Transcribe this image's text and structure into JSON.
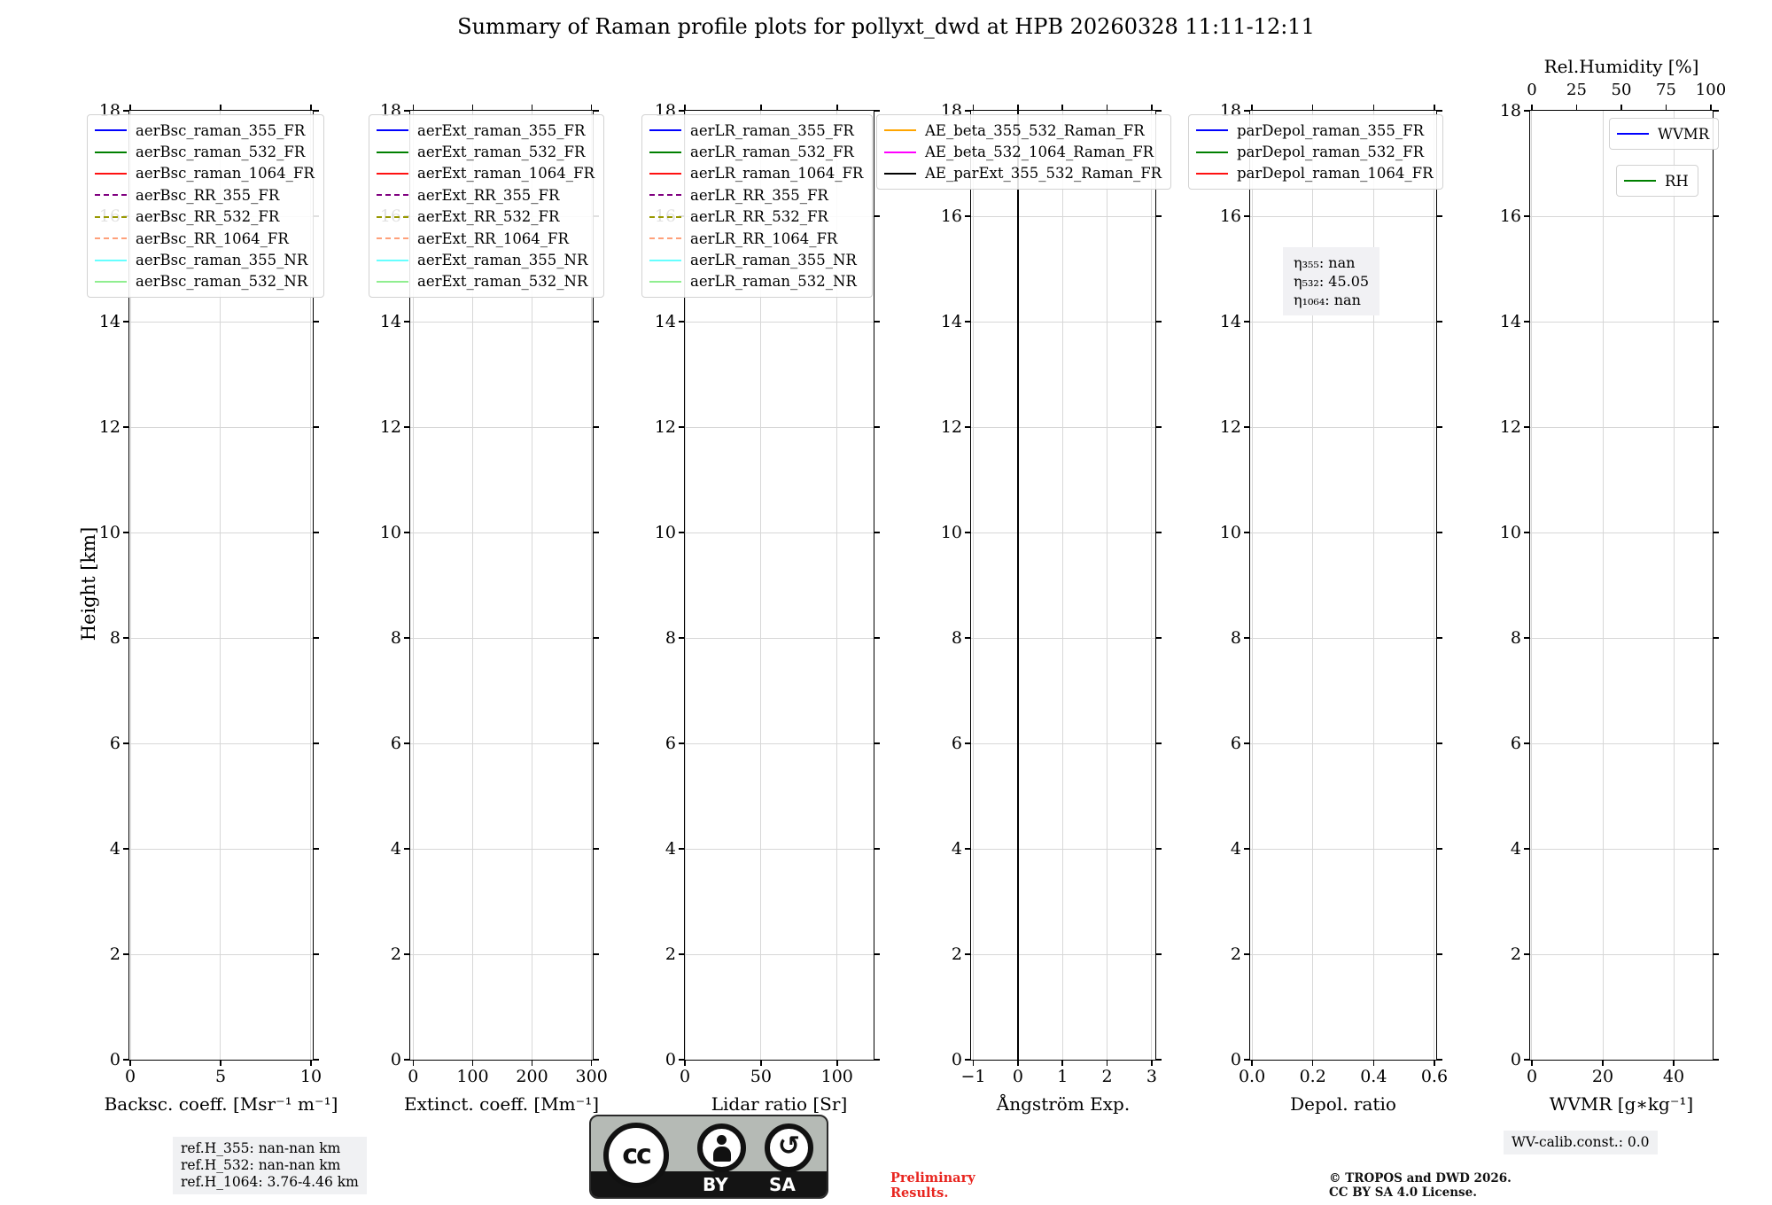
{
  "figure": {
    "title": "Summary of Raman profile plots for pollyxt_dwd at HPB 20260328 11:11-12:11",
    "ylabel": "Height [km]"
  },
  "chart_data": [
    {
      "id": "backscatter",
      "type": "line",
      "xlabel": "Backsc. coeff. [Msr⁻¹ m⁻¹]",
      "xlim": [
        -0.05,
        10.1
      ],
      "ylim": [
        0,
        18
      ],
      "xticks": [
        {
          "v": 0,
          "label": "0"
        },
        {
          "v": 5,
          "label": "5"
        },
        {
          "v": 10,
          "label": "10"
        }
      ],
      "yticks": [
        0,
        2,
        4,
        6,
        8,
        10,
        12,
        14,
        16,
        18
      ],
      "grid": true,
      "legend_loc": "upper left",
      "note": "axes empty - no profile curves visible",
      "series": [
        {
          "name": "aerBsc_raman_355_FR",
          "color": "#0000ff",
          "dash": false,
          "points": []
        },
        {
          "name": "aerBsc_raman_532_FR",
          "color": "#008000",
          "dash": false,
          "points": []
        },
        {
          "name": "aerBsc_raman_1064_FR",
          "color": "#ff1111",
          "dash": false,
          "points": []
        },
        {
          "name": "aerBsc_RR_355_FR",
          "color": "#800080",
          "dash": true,
          "points": []
        },
        {
          "name": "aerBsc_RR_532_FR",
          "color": "#999900",
          "dash": true,
          "points": []
        },
        {
          "name": "aerBsc_RR_1064_FR",
          "color": "#ffa07a",
          "dash": true,
          "points": []
        },
        {
          "name": "aerBsc_raman_355_NR",
          "color": "#66ffff",
          "dash": false,
          "points": []
        },
        {
          "name": "aerBsc_raman_532_NR",
          "color": "#90ee90",
          "dash": false,
          "points": []
        }
      ]
    },
    {
      "id": "extinction",
      "type": "line",
      "xlabel": "Extinct. coeff. [Mm⁻¹]",
      "xlim": [
        -5,
        302
      ],
      "ylim": [
        0,
        18
      ],
      "xticks": [
        {
          "v": 0,
          "label": "0"
        },
        {
          "v": 100,
          "label": "100"
        },
        {
          "v": 200,
          "label": "200"
        },
        {
          "v": 300,
          "label": "300"
        }
      ],
      "yticks": [
        0,
        2,
        4,
        6,
        8,
        10,
        12,
        14,
        16,
        18
      ],
      "grid": true,
      "legend_loc": "upper left",
      "note": "axes empty - no profile curves visible",
      "series": [
        {
          "name": "aerExt_raman_355_FR",
          "color": "#0000ff",
          "dash": false,
          "points": []
        },
        {
          "name": "aerExt_raman_532_FR",
          "color": "#008000",
          "dash": false,
          "points": []
        },
        {
          "name": "aerExt_raman_1064_FR",
          "color": "#ff1111",
          "dash": false,
          "points": []
        },
        {
          "name": "aerExt_RR_355_FR",
          "color": "#800080",
          "dash": true,
          "points": []
        },
        {
          "name": "aerExt_RR_532_FR",
          "color": "#999900",
          "dash": true,
          "points": []
        },
        {
          "name": "aerExt_RR_1064_FR",
          "color": "#ffa07a",
          "dash": true,
          "points": []
        },
        {
          "name": "aerExt_raman_355_NR",
          "color": "#66ffff",
          "dash": false,
          "points": []
        },
        {
          "name": "aerExt_raman_532_NR",
          "color": "#90ee90",
          "dash": false,
          "points": []
        }
      ]
    },
    {
      "id": "lidar-ratio",
      "type": "line",
      "xlabel": "Lidar ratio [Sr]",
      "xlim": [
        0,
        124
      ],
      "ylim": [
        0,
        18
      ],
      "xticks": [
        {
          "v": 0,
          "label": "0"
        },
        {
          "v": 50,
          "label": "50"
        },
        {
          "v": 100,
          "label": "100"
        }
      ],
      "yticks": [
        0,
        2,
        4,
        6,
        8,
        10,
        12,
        14,
        16,
        18
      ],
      "grid": true,
      "legend_loc": "upper left",
      "note": "axes empty - no profile curves visible",
      "series": [
        {
          "name": "aerLR_raman_355_FR",
          "color": "#0000ff",
          "dash": false,
          "points": []
        },
        {
          "name": "aerLR_raman_532_FR",
          "color": "#008000",
          "dash": false,
          "points": []
        },
        {
          "name": "aerLR_raman_1064_FR",
          "color": "#ff1111",
          "dash": false,
          "points": []
        },
        {
          "name": "aerLR_RR_355_FR",
          "color": "#800080",
          "dash": true,
          "points": []
        },
        {
          "name": "aerLR_RR_532_FR",
          "color": "#999900",
          "dash": true,
          "points": []
        },
        {
          "name": "aerLR_RR_1064_FR",
          "color": "#ffa07a",
          "dash": true,
          "points": []
        },
        {
          "name": "aerLR_raman_355_NR",
          "color": "#66ffff",
          "dash": false,
          "points": []
        },
        {
          "name": "aerLR_raman_532_NR",
          "color": "#90ee90",
          "dash": false,
          "points": []
        }
      ]
    },
    {
      "id": "angstroem",
      "type": "line",
      "xlabel": "Ångström Exp.",
      "xlim": [
        -1.05,
        3.08
      ],
      "ylim": [
        0,
        18
      ],
      "xticks": [
        {
          "v": -1,
          "label": "−1"
        },
        {
          "v": 0,
          "label": "0"
        },
        {
          "v": 1,
          "label": "1"
        },
        {
          "v": 2,
          "label": "2"
        },
        {
          "v": 3,
          "label": "3"
        }
      ],
      "yticks": [
        0,
        2,
        4,
        6,
        8,
        10,
        12,
        14,
        16,
        18
      ],
      "grid": true,
      "legend_loc": "upper left",
      "note": "black AE_parExt profile is a constant vertical line at 0 over 0-18 km",
      "series": [
        {
          "name": "AE_beta_355_532_Raman_FR",
          "color": "#ffa500",
          "dash": false,
          "points": []
        },
        {
          "name": "AE_beta_532_1064_Raman_FR",
          "color": "#ff00ff",
          "dash": false,
          "points": []
        },
        {
          "name": "AE_parExt_355_532_Raman_FR",
          "color": "#000000",
          "dash": false,
          "points": [
            [
              0,
              0
            ],
            [
              0,
              18
            ]
          ]
        }
      ]
    },
    {
      "id": "depol",
      "type": "line",
      "xlabel": "Depol. ratio",
      "xlim": [
        -0.006,
        0.606
      ],
      "ylim": [
        0,
        18
      ],
      "xticks": [
        {
          "v": 0,
          "label": "0.0"
        },
        {
          "v": 0.2,
          "label": "0.2"
        },
        {
          "v": 0.4,
          "label": "0.4"
        },
        {
          "v": 0.6,
          "label": "0.6"
        }
      ],
      "yticks": [
        0,
        2,
        4,
        6,
        8,
        10,
        12,
        14,
        16,
        18
      ],
      "grid": true,
      "legend_loc": "upper left",
      "annotation": [
        "η₃₅₅: nan",
        "η₅₃₂: 45.05",
        "η₁₀₆₄: nan"
      ],
      "note": "axes empty - no profile curves visible",
      "series": [
        {
          "name": "parDepol_raman_355_FR",
          "color": "#0000ff",
          "dash": false,
          "points": []
        },
        {
          "name": "parDepol_raman_532_FR",
          "color": "#008000",
          "dash": false,
          "points": []
        },
        {
          "name": "parDepol_raman_1064_FR",
          "color": "#ff1111",
          "dash": false,
          "points": []
        }
      ]
    },
    {
      "id": "wvmr",
      "type": "line",
      "xlabel": "WVMR [g∗kg⁻¹]",
      "xlim": [
        -0.5,
        51
      ],
      "ylim": [
        0,
        18
      ],
      "xticks": [
        {
          "v": 0,
          "label": "0"
        },
        {
          "v": 20,
          "label": "20"
        },
        {
          "v": 40,
          "label": "40"
        }
      ],
      "yticks": [
        0,
        2,
        4,
        6,
        8,
        10,
        12,
        14,
        16,
        18
      ],
      "grid": true,
      "legend_split": true,
      "top_axis": {
        "label": "Rel.Humidity [%]",
        "xlim": [
          -1,
          101
        ],
        "ticks": [
          0,
          25,
          50,
          75,
          100
        ]
      },
      "note": "axes empty - no profile curves visible",
      "series": [
        {
          "name": "WVMR",
          "color": "#0000ff",
          "dash": false,
          "points": []
        },
        {
          "name": "RH",
          "color": "#008000",
          "dash": false,
          "points": []
        }
      ]
    }
  ],
  "annotations": {
    "ref_heights": [
      "ref.H_355: nan-nan km",
      "ref.H_532: nan-nan km",
      "ref.H_1064: 3.76-4.46 km"
    ],
    "wv_calib": "WV-calib.const.: 0.0"
  },
  "footer": {
    "preliminary": [
      "Preliminary",
      "Results."
    ],
    "copyright": [
      "© TROPOS and DWD 2026.",
      "CC BY SA 4.0 License."
    ],
    "license_badge": {
      "cc": "cc",
      "by": "BY",
      "sa": "SA",
      "sa_symbol": "↺"
    }
  }
}
